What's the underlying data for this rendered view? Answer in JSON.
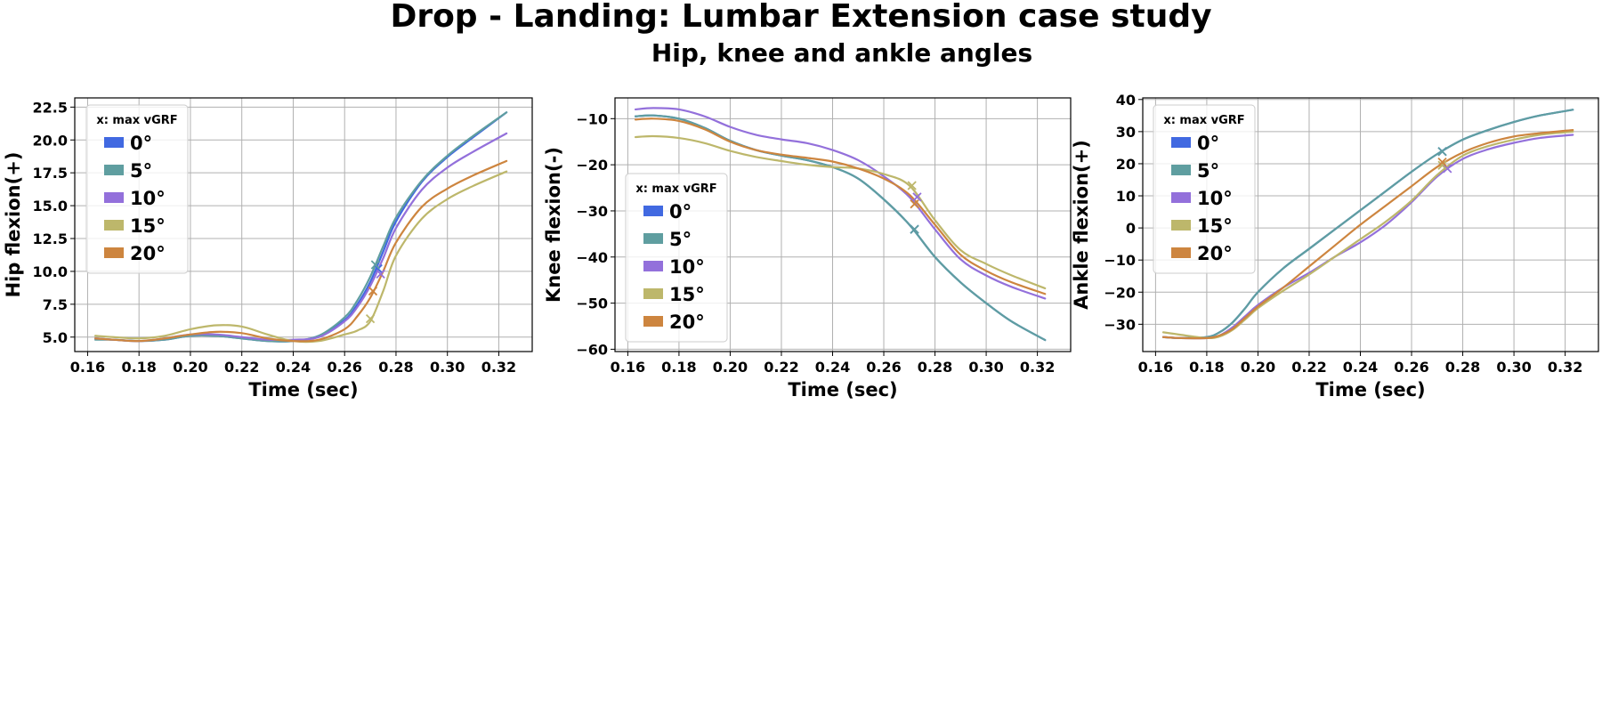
{
  "title": "Drop - Landing: Lumbar Extension case study",
  "subtitle": "Hip, knee and ankle angles",
  "colors": {
    "0°": "#4169e1",
    "5°": "#5f9ea0",
    "10°": "#9370db",
    "15°": "#bdb76b",
    "20°": "#cd853f"
  },
  "chart_data": [
    {
      "type": "line",
      "xlabel": "Time (sec)",
      "ylabel": "Hip flexion(+)",
      "xlim": [
        0.155,
        0.333
      ],
      "ylim": [
        3.9,
        23.2
      ],
      "xticks": [
        0.16,
        0.18,
        0.2,
        0.22,
        0.24,
        0.26,
        0.28,
        0.3,
        0.32
      ],
      "yticks": [
        5.0,
        7.5,
        10.0,
        12.5,
        15.0,
        17.5,
        20.0,
        22.5
      ],
      "xtick_labels": [
        "0.16",
        "0.18",
        "0.20",
        "0.22",
        "0.24",
        "0.26",
        "0.28",
        "0.30",
        "0.32"
      ],
      "ytick_labels": [
        "5.0",
        "7.5",
        "10.0",
        "12.5",
        "15.0",
        "17.5",
        "20.0",
        "22.5"
      ],
      "grid": true,
      "legend": {
        "title": "x: max vGRF",
        "position": "upper-left",
        "entries": [
          "0°",
          "5°",
          "10°",
          "15°",
          "20°"
        ]
      },
      "series": [
        {
          "name": "0°",
          "x": [
            0.163,
            0.17,
            0.18,
            0.19,
            0.2,
            0.21,
            0.22,
            0.23,
            0.24,
            0.25,
            0.26,
            0.265,
            0.27,
            0.275,
            0.28,
            0.29,
            0.3,
            0.31,
            0.323
          ],
          "y": [
            4.9,
            4.8,
            4.7,
            4.8,
            5.1,
            5.1,
            4.9,
            4.7,
            4.7,
            5.1,
            6.3,
            7.5,
            9.2,
            11.5,
            13.8,
            16.8,
            18.7,
            20.2,
            22.1
          ],
          "marker": [
            0.273,
            10.2
          ]
        },
        {
          "name": "5°",
          "x": [
            0.163,
            0.17,
            0.18,
            0.19,
            0.2,
            0.21,
            0.22,
            0.23,
            0.24,
            0.25,
            0.26,
            0.265,
            0.27,
            0.275,
            0.28,
            0.29,
            0.3,
            0.31,
            0.323
          ],
          "y": [
            4.8,
            4.8,
            4.7,
            4.8,
            5.1,
            5.1,
            4.9,
            4.7,
            4.7,
            5.1,
            6.5,
            7.8,
            9.6,
            11.9,
            14.1,
            16.9,
            18.8,
            20.3,
            22.1
          ],
          "marker": [
            0.272,
            10.5
          ]
        },
        {
          "name": "10°",
          "x": [
            0.163,
            0.17,
            0.18,
            0.19,
            0.2,
            0.21,
            0.22,
            0.23,
            0.24,
            0.25,
            0.26,
            0.265,
            0.27,
            0.275,
            0.28,
            0.29,
            0.3,
            0.31,
            0.323
          ],
          "y": [
            4.9,
            4.8,
            4.7,
            4.9,
            5.2,
            5.2,
            5.0,
            4.8,
            4.8,
            5.0,
            6.2,
            7.3,
            8.9,
            11.0,
            13.3,
            16.2,
            17.9,
            19.1,
            20.5
          ],
          "marker": [
            0.274,
            9.8
          ]
        },
        {
          "name": "15°",
          "x": [
            0.163,
            0.17,
            0.18,
            0.19,
            0.2,
            0.21,
            0.22,
            0.23,
            0.24,
            0.25,
            0.26,
            0.265,
            0.27,
            0.275,
            0.28,
            0.29,
            0.3,
            0.31,
            0.323
          ],
          "y": [
            5.1,
            5.0,
            4.9,
            5.1,
            5.6,
            5.9,
            5.8,
            5.2,
            4.7,
            4.7,
            5.2,
            5.5,
            6.2,
            8.5,
            11.2,
            14.0,
            15.5,
            16.5,
            17.6
          ],
          "marker": [
            0.27,
            6.4
          ]
        },
        {
          "name": "20°",
          "x": [
            0.163,
            0.17,
            0.18,
            0.19,
            0.2,
            0.21,
            0.22,
            0.23,
            0.24,
            0.25,
            0.26,
            0.265,
            0.27,
            0.275,
            0.28,
            0.29,
            0.3,
            0.31,
            0.323
          ],
          "y": [
            4.9,
            4.8,
            4.7,
            4.9,
            5.2,
            5.4,
            5.3,
            4.9,
            4.7,
            4.8,
            5.6,
            6.6,
            8.0,
            10.0,
            12.2,
            14.9,
            16.3,
            17.3,
            18.4
          ],
          "marker": [
            0.271,
            8.5
          ]
        }
      ]
    },
    {
      "type": "line",
      "xlabel": "Time (sec)",
      "ylabel": "Knee flexion(-)",
      "xlim": [
        0.155,
        0.333
      ],
      "ylim": [
        -60.5,
        -5.5
      ],
      "xticks": [
        0.16,
        0.18,
        0.2,
        0.22,
        0.24,
        0.26,
        0.28,
        0.3,
        0.32
      ],
      "yticks": [
        -60,
        -50,
        -40,
        -30,
        -20,
        -10
      ],
      "xtick_labels": [
        "0.16",
        "0.18",
        "0.20",
        "0.22",
        "0.24",
        "0.26",
        "0.28",
        "0.30",
        "0.32"
      ],
      "ytick_labels": [
        "−60",
        "−50",
        "−40",
        "−30",
        "−20",
        "−10"
      ],
      "grid": true,
      "legend": {
        "title": "x: max vGRF",
        "position": "center-left",
        "entries": [
          "0°",
          "5°",
          "10°",
          "15°",
          "20°"
        ]
      },
      "series": [
        {
          "name": "0°",
          "x": [
            0.163,
            0.17,
            0.18,
            0.19,
            0.2,
            0.21,
            0.22,
            0.23,
            0.24,
            0.25,
            0.26,
            0.27,
            0.28,
            0.29,
            0.3,
            0.31,
            0.323
          ],
          "y": [
            -9.5,
            -9.3,
            -10.0,
            -12.0,
            -14.8,
            -16.8,
            -18.0,
            -19.0,
            -20.5,
            -23.0,
            -27.5,
            -33.0,
            -40.0,
            -45.5,
            -50.0,
            -54.0,
            -58.0
          ],
          "marker": [
            0.272,
            -34.0
          ]
        },
        {
          "name": "5°",
          "x": [
            0.163,
            0.17,
            0.18,
            0.19,
            0.2,
            0.21,
            0.22,
            0.23,
            0.24,
            0.25,
            0.26,
            0.27,
            0.28,
            0.29,
            0.3,
            0.31,
            0.323
          ],
          "y": [
            -9.5,
            -9.3,
            -10.0,
            -12.0,
            -14.8,
            -16.8,
            -18.0,
            -19.0,
            -20.5,
            -23.0,
            -27.5,
            -33.0,
            -40.0,
            -45.5,
            -50.0,
            -54.0,
            -58.0
          ],
          "marker": [
            0.272,
            -34.0
          ]
        },
        {
          "name": "10°",
          "x": [
            0.163,
            0.17,
            0.18,
            0.19,
            0.2,
            0.21,
            0.22,
            0.23,
            0.24,
            0.25,
            0.26,
            0.27,
            0.28,
            0.29,
            0.3,
            0.31,
            0.323
          ],
          "y": [
            -8.0,
            -7.7,
            -8.0,
            -9.5,
            -11.8,
            -13.5,
            -14.5,
            -15.3,
            -16.8,
            -19.0,
            -22.5,
            -27.0,
            -34.0,
            -40.5,
            -44.0,
            -46.5,
            -49.0
          ],
          "marker": [
            0.273,
            -27.0
          ]
        },
        {
          "name": "15°",
          "x": [
            0.163,
            0.17,
            0.18,
            0.19,
            0.2,
            0.21,
            0.22,
            0.23,
            0.24,
            0.25,
            0.26,
            0.27,
            0.28,
            0.29,
            0.3,
            0.31,
            0.323
          ],
          "y": [
            -14.0,
            -13.8,
            -14.2,
            -15.3,
            -17.0,
            -18.3,
            -19.2,
            -20.0,
            -20.5,
            -20.8,
            -22.0,
            -24.5,
            -32.0,
            -38.5,
            -41.5,
            -44.0,
            -46.8
          ],
          "marker": [
            0.271,
            -24.5
          ]
        },
        {
          "name": "20°",
          "x": [
            0.163,
            0.17,
            0.18,
            0.19,
            0.2,
            0.21,
            0.22,
            0.23,
            0.24,
            0.25,
            0.26,
            0.27,
            0.28,
            0.29,
            0.3,
            0.31,
            0.323
          ],
          "y": [
            -10.2,
            -10.0,
            -10.5,
            -12.3,
            -15.0,
            -16.8,
            -17.8,
            -18.5,
            -19.3,
            -20.8,
            -23.0,
            -26.5,
            -33.0,
            -39.5,
            -43.0,
            -45.5,
            -48.0
          ],
          "marker": [
            0.272,
            -28.5
          ]
        }
      ]
    },
    {
      "type": "line",
      "xlabel": "Time (sec)",
      "ylabel": "Ankle flexion(+)",
      "xlim": [
        0.155,
        0.333
      ],
      "ylim": [
        -38.5,
        40.5
      ],
      "xticks": [
        0.16,
        0.18,
        0.2,
        0.22,
        0.24,
        0.26,
        0.28,
        0.3,
        0.32
      ],
      "yticks": [
        -30,
        -20,
        -10,
        0,
        10,
        20,
        30,
        40
      ],
      "xtick_labels": [
        "0.16",
        "0.18",
        "0.20",
        "0.22",
        "0.24",
        "0.26",
        "0.28",
        "0.30",
        "0.32"
      ],
      "ytick_labels": [
        "−30",
        "−20",
        "−10",
        "0",
        "10",
        "20",
        "30",
        "40"
      ],
      "grid": true,
      "legend": {
        "title": "x: max vGRF",
        "position": "upper-left",
        "entries": [
          "0°",
          "5°",
          "10°",
          "15°",
          "20°"
        ]
      },
      "series": [
        {
          "name": "0°",
          "x": [
            0.163,
            0.17,
            0.18,
            0.185,
            0.19,
            0.195,
            0.2,
            0.21,
            0.22,
            0.23,
            0.24,
            0.25,
            0.26,
            0.27,
            0.28,
            0.29,
            0.3,
            0.31,
            0.323
          ],
          "y": [
            -34.0,
            -34.3,
            -34.0,
            -32.5,
            -29.5,
            -25.0,
            -20.0,
            -12.5,
            -6.5,
            -0.5,
            5.5,
            11.5,
            17.5,
            23.0,
            27.5,
            30.5,
            33.0,
            35.0,
            36.8
          ],
          "marker": [
            0.272,
            23.8
          ]
        },
        {
          "name": "5°",
          "x": [
            0.163,
            0.17,
            0.18,
            0.185,
            0.19,
            0.195,
            0.2,
            0.21,
            0.22,
            0.23,
            0.24,
            0.25,
            0.26,
            0.27,
            0.28,
            0.29,
            0.3,
            0.31,
            0.323
          ],
          "y": [
            -34.0,
            -34.3,
            -34.0,
            -32.5,
            -29.5,
            -25.0,
            -20.0,
            -12.5,
            -6.5,
            -0.5,
            5.5,
            11.5,
            17.5,
            23.0,
            27.5,
            30.5,
            33.0,
            35.0,
            36.8
          ],
          "marker": [
            0.272,
            23.8
          ]
        },
        {
          "name": "10°",
          "x": [
            0.163,
            0.17,
            0.18,
            0.185,
            0.19,
            0.195,
            0.2,
            0.21,
            0.22,
            0.23,
            0.24,
            0.25,
            0.26,
            0.27,
            0.28,
            0.29,
            0.3,
            0.31,
            0.323
          ],
          "y": [
            -34.0,
            -34.3,
            -34.3,
            -33.5,
            -31.0,
            -27.5,
            -24.0,
            -18.5,
            -14.0,
            -9.0,
            -4.5,
            1.0,
            8.0,
            16.0,
            21.5,
            24.5,
            26.5,
            28.0,
            29.0
          ],
          "marker": [
            0.274,
            18.5
          ]
        },
        {
          "name": "15°",
          "x": [
            0.163,
            0.17,
            0.18,
            0.185,
            0.19,
            0.195,
            0.2,
            0.21,
            0.22,
            0.23,
            0.24,
            0.25,
            0.26,
            0.27,
            0.28,
            0.29,
            0.3,
            0.31,
            0.323
          ],
          "y": [
            -32.5,
            -33.3,
            -34.3,
            -33.8,
            -31.8,
            -28.5,
            -25.0,
            -19.5,
            -14.5,
            -9.0,
            -3.5,
            2.0,
            8.5,
            16.5,
            22.5,
            25.5,
            27.5,
            29.0,
            30.0
          ],
          "marker": [
            0.272,
            19.5
          ]
        },
        {
          "name": "20°",
          "x": [
            0.163,
            0.17,
            0.18,
            0.185,
            0.19,
            0.195,
            0.2,
            0.21,
            0.22,
            0.23,
            0.24,
            0.25,
            0.26,
            0.27,
            0.28,
            0.29,
            0.3,
            0.31,
            0.323
          ],
          "y": [
            -34.0,
            -34.3,
            -34.3,
            -33.5,
            -31.5,
            -28.0,
            -24.5,
            -18.5,
            -12.0,
            -5.5,
            1.0,
            7.0,
            13.0,
            19.0,
            23.5,
            26.5,
            28.5,
            29.5,
            30.5
          ],
          "marker": [
            0.272,
            20.5
          ]
        }
      ]
    }
  ]
}
